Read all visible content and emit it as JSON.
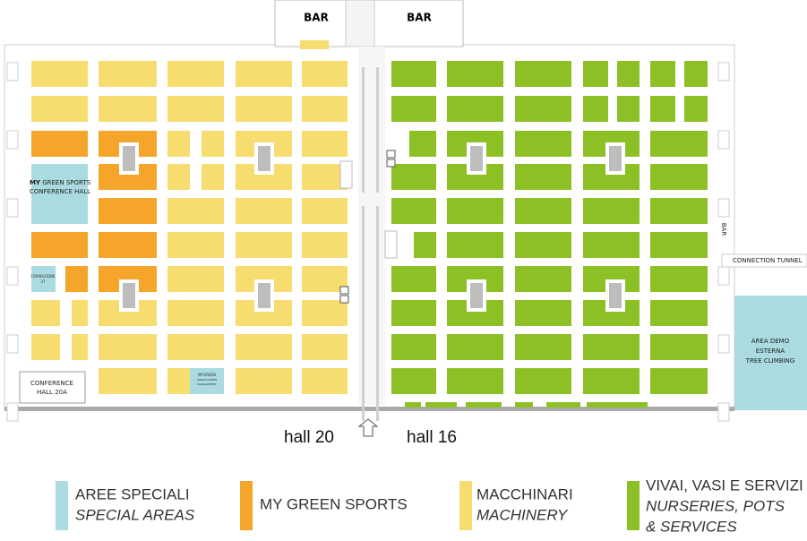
{
  "bars": [
    "BAR",
    "BAR"
  ],
  "my_green_sports_hall": {
    "bold": "MY",
    "rest": "GREEN SPORTS",
    "line2": "CONFERENCE HALL"
  },
  "formazione": [
    "FORMAZIONE",
    "37"
  ],
  "mygreen": [
    "MYGREEN",
    "URBAN GREEN",
    "MANAGEMENT"
  ],
  "conference_hall_20a": [
    "CONFERENCE",
    "HALL 20A"
  ],
  "side_bar": "BAR",
  "connection_tunnel": "CONNECTION TUNNEL",
  "area_demo": [
    "AREA DEMO",
    "ESTERNA",
    "TREE CLIMBING"
  ],
  "halls": [
    "hall 20",
    "hall 16"
  ],
  "legend": [
    {
      "lines": [
        "AREE SPECIALI",
        "SPECIAL AREAS"
      ]
    },
    {
      "lines": [
        "MY GREEN SPORTS"
      ]
    },
    {
      "lines": [
        "MACCHINARI",
        "MACHINERY"
      ]
    },
    {
      "lines": [
        "VIVAI, VASI E SERVIZI",
        "NURSERIES, POTS",
        "& SERVICES"
      ]
    }
  ]
}
